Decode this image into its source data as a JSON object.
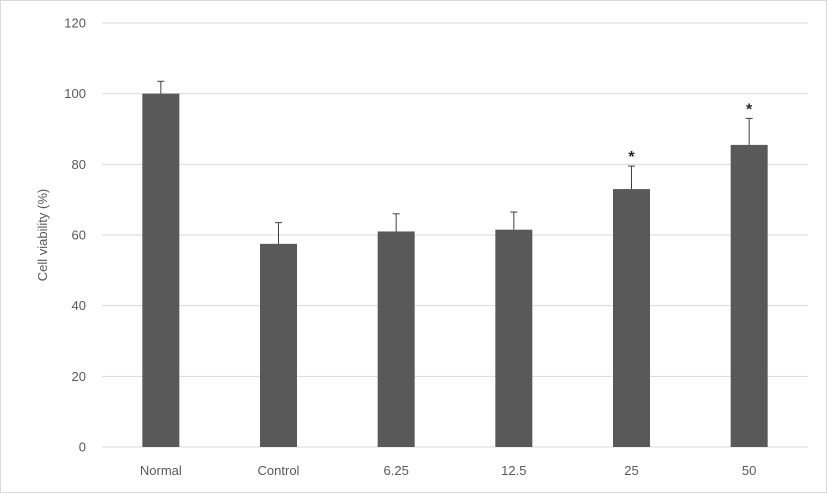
{
  "chart_data": {
    "type": "bar",
    "title": "",
    "xlabel": "",
    "ylabel": "Cell viability (%)",
    "ylim": [
      0,
      120
    ],
    "yticks": [
      0,
      20,
      40,
      60,
      80,
      100,
      120
    ],
    "grid": true,
    "legend": "none",
    "categories": [
      "Normal",
      "Control",
      "6.25",
      "12.5",
      "25",
      "50"
    ],
    "values": [
      100,
      57.5,
      61,
      61.5,
      73,
      85.5
    ],
    "errors": [
      3.5,
      6,
      5,
      5,
      6.5,
      7.5
    ],
    "significance": [
      "",
      "",
      "",
      "",
      "*",
      "*"
    ],
    "bar_color": "#595959",
    "grid_color": "#d9d9d9"
  }
}
